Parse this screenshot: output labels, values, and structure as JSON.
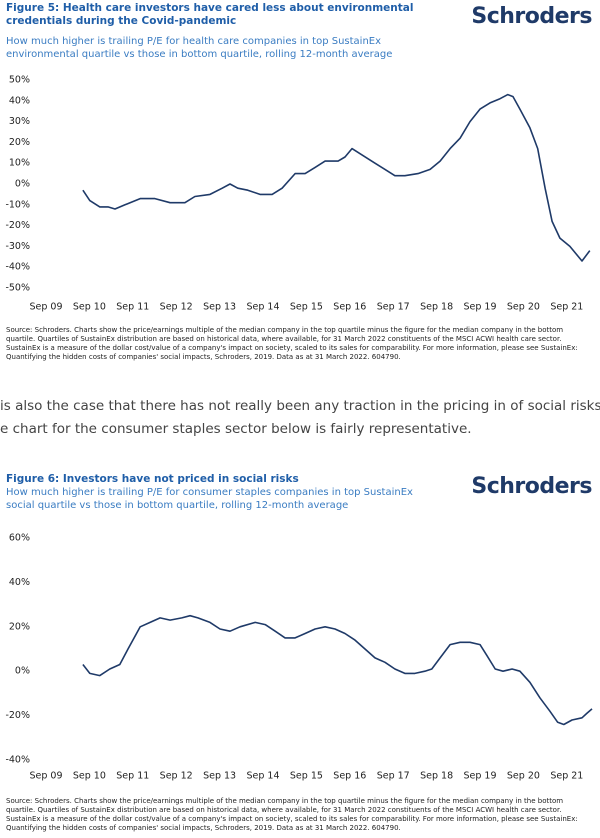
{
  "chart_data": [
    {
      "type": "line",
      "title": "Figure 5: Health care investors have cared less about environmental credentials during the Covid-pandemic",
      "subtitle": "How much higher is trailing P/E for health care companies in top SustainEx environmental quartile vs those in bottom quartile, rolling 12-month average",
      "brand": "Schroders",
      "source": "Source: Schroders. Charts show the price/earnings multiple of the median company in the top quartile minus the figure for the median company in the bottom quartile. Quartiles of SustainEx distribution are based on historical data, where available, for 31 March 2022 constituents of the MSCI ACWI health care sector. SustainEx is a measure of the dollar cost/value of a company's impact on society, scaled to its sales for comparability. For more information, please see SustainEx: Quantifying the hidden costs of companies' social impacts, Schroders, 2019. Data as at 31 March 2022. 604790.",
      "xlim": [
        2009.5,
        2022.25
      ],
      "xticks": [
        {
          "value": 2009.67,
          "label": "Sep 09"
        },
        {
          "value": 2010.67,
          "label": "Sep 10"
        },
        {
          "value": 2011.67,
          "label": "Sep 11"
        },
        {
          "value": 2012.67,
          "label": "Sep 12"
        },
        {
          "value": 2013.67,
          "label": "Sep 13"
        },
        {
          "value": 2014.67,
          "label": "Sep 14"
        },
        {
          "value": 2015.67,
          "label": "Sep 15"
        },
        {
          "value": 2016.67,
          "label": "Sep 16"
        },
        {
          "value": 2017.67,
          "label": "Sep 17"
        },
        {
          "value": 2018.67,
          "label": "Sep 18"
        },
        {
          "value": 2019.67,
          "label": "Sep 19"
        },
        {
          "value": 2020.67,
          "label": "Sep 20"
        },
        {
          "value": 2021.67,
          "label": "Sep 21"
        }
      ],
      "ylim": [
        -50,
        50
      ],
      "yticks": [
        {
          "value": 50,
          "label": "50%"
        },
        {
          "value": 40,
          "label": "40%"
        },
        {
          "value": 30,
          "label": "30%"
        },
        {
          "value": 20,
          "label": "20%"
        },
        {
          "value": 10,
          "label": "10%"
        },
        {
          "value": 0,
          "label": "0%"
        },
        {
          "value": -10,
          "label": "-10%"
        },
        {
          "value": -20,
          "label": "-20%"
        },
        {
          "value": -30,
          "label": "-30%"
        },
        {
          "value": -40,
          "label": "-40%"
        },
        {
          "value": -50,
          "label": "-50%"
        }
      ],
      "color": "#1f3a68",
      "x": [
        2010.52,
        2010.68,
        2010.91,
        2011.1,
        2011.26,
        2011.49,
        2011.84,
        2012.18,
        2012.53,
        2012.87,
        2013.1,
        2013.45,
        2013.73,
        2013.91,
        2014.09,
        2014.32,
        2014.6,
        2014.88,
        2015.11,
        2015.41,
        2015.64,
        2015.87,
        2016.1,
        2016.4,
        2016.56,
        2016.72,
        2016.95,
        2017.25,
        2017.48,
        2017.71,
        2017.94,
        2018.24,
        2018.52,
        2018.75,
        2018.98,
        2019.21,
        2019.44,
        2019.67,
        2019.9,
        2020.13,
        2020.31,
        2020.43,
        2020.59,
        2020.82,
        2021.0,
        2021.17,
        2021.33,
        2021.51,
        2021.74,
        2022.02,
        2022.2
      ],
      "values": [
        -3,
        -8,
        -11,
        -11,
        -12,
        -10,
        -7,
        -7,
        -9,
        -9,
        -6,
        -5,
        -2,
        0,
        -2,
        -3,
        -5,
        -5,
        -2,
        5,
        5,
        8,
        11,
        11,
        13,
        17,
        14,
        10,
        7,
        4,
        4,
        5,
        7,
        11,
        17,
        22,
        30,
        36,
        39,
        41,
        43,
        42,
        36,
        27,
        17,
        -2,
        -18,
        -26,
        -30,
        -37,
        -32
      ]
    },
    {
      "type": "line",
      "title": "Figure 6: Investors have not priced in social risks",
      "subtitle": "How much higher is trailing P/E for consumer staples companies in top SustainEx social quartile vs those in bottom quartile, rolling 12-month average",
      "brand": "Schroders",
      "source": "Source: Schroders. Charts show the price/earnings multiple of the median company in the top quartile minus the figure for the median company in the bottom quartile. Quartiles of SustainEx distribution are based on historical data, where available, for 31 March 2022 constituents of the MSCI ACWI health care sector. SustainEx is a measure of the dollar cost/value of a company's impact on society, scaled to its sales for comparability. For more information, please see SustainEx: Quantifying the hidden costs of companies' social impacts, Schroders, 2019. Data as at 31 March 2022. 604790.",
      "xlim": [
        2009.5,
        2022.25
      ],
      "xticks": [
        {
          "value": 2009.67,
          "label": "Sep 09"
        },
        {
          "value": 2010.67,
          "label": "Sep 10"
        },
        {
          "value": 2011.67,
          "label": "Sep 11"
        },
        {
          "value": 2012.67,
          "label": "Sep 12"
        },
        {
          "value": 2013.67,
          "label": "Sep 13"
        },
        {
          "value": 2014.67,
          "label": "Sep 14"
        },
        {
          "value": 2015.67,
          "label": "Sep 15"
        },
        {
          "value": 2016.67,
          "label": "Sep 16"
        },
        {
          "value": 2017.67,
          "label": "Sep 17"
        },
        {
          "value": 2018.67,
          "label": "Sep 18"
        },
        {
          "value": 2019.67,
          "label": "Sep 19"
        },
        {
          "value": 2020.67,
          "label": "Sep 20"
        },
        {
          "value": 2021.67,
          "label": "Sep 21"
        }
      ],
      "ylim": [
        -40,
        60
      ],
      "yticks": [
        {
          "value": 60,
          "label": "60%"
        },
        {
          "value": 40,
          "label": "40%"
        },
        {
          "value": 20,
          "label": "20%"
        },
        {
          "value": 0,
          "label": "0%"
        },
        {
          "value": -20,
          "label": "-20%"
        },
        {
          "value": -40,
          "label": "-40%"
        }
      ],
      "color": "#1f3a68",
      "x": [
        2010.52,
        2010.68,
        2010.91,
        2011.14,
        2011.37,
        2011.56,
        2011.84,
        2012.07,
        2012.3,
        2012.53,
        2012.8,
        2012.99,
        2013.17,
        2013.45,
        2013.68,
        2013.91,
        2014.14,
        2014.49,
        2014.72,
        2014.95,
        2015.18,
        2015.41,
        2015.64,
        2015.87,
        2016.1,
        2016.33,
        2016.56,
        2016.79,
        2017.02,
        2017.25,
        2017.48,
        2017.71,
        2017.94,
        2018.17,
        2018.4,
        2018.56,
        2018.75,
        2018.98,
        2019.21,
        2019.44,
        2019.67,
        2019.83,
        2020.02,
        2020.2,
        2020.41,
        2020.59,
        2020.82,
        2021.05,
        2021.28,
        2021.46,
        2021.6,
        2021.79,
        2022.02,
        2022.13,
        2022.25
      ],
      "values": [
        3,
        -1,
        -2,
        1,
        3,
        10,
        20,
        22,
        24,
        23,
        24,
        25,
        24,
        22,
        19,
        18,
        20,
        22,
        21,
        18,
        15,
        15,
        17,
        19,
        20,
        19,
        17,
        14,
        10,
        6,
        4,
        1,
        -1,
        -1,
        0,
        1,
        6,
        12,
        13,
        13,
        12,
        7,
        1,
        0,
        1,
        0,
        -5,
        -12,
        -18,
        -23,
        -24,
        -22,
        -21,
        -19,
        -17
      ]
    }
  ],
  "paragraph": [
    "is also the case that there has not really been any traction in the pricing in of social risks –",
    "e chart for the consumer staples sector below is fairly representative."
  ]
}
